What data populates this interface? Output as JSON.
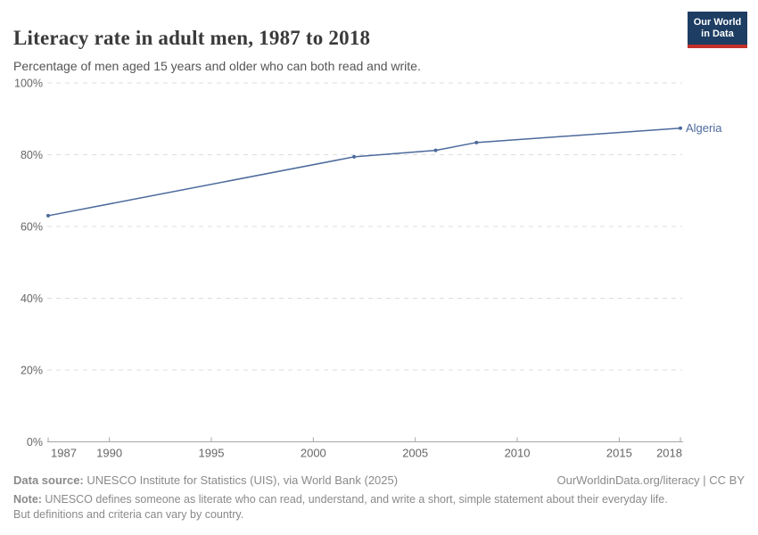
{
  "header": {
    "title": "Literacy rate in adult men, 1987 to 2018",
    "subtitle": "Percentage of men aged 15 years and older who can both read and write.",
    "logo": {
      "line1": "Our World",
      "line2": "in Data"
    }
  },
  "chart_data": {
    "type": "line",
    "title": "Literacy rate in adult men, 1987 to 2018",
    "xlabel": "",
    "ylabel": "",
    "xlim": [
      1987,
      2018
    ],
    "ylim": [
      0,
      100
    ],
    "x_ticks": [
      1987,
      1990,
      1995,
      2000,
      2005,
      2010,
      2015,
      2018
    ],
    "y_ticks": [
      0,
      20,
      40,
      60,
      80,
      100
    ],
    "y_tick_suffix": "%",
    "grid": "horizontal-dashed",
    "legend_position": "end-of-line-label",
    "series": [
      {
        "name": "Algeria",
        "color": "#4C6A9C",
        "points": [
          {
            "x": 1987,
            "y": 63.0
          },
          {
            "x": 2002,
            "y": 79.4
          },
          {
            "x": 2006,
            "y": 81.2
          },
          {
            "x": 2008,
            "y": 83.4
          },
          {
            "x": 2018,
            "y": 87.4
          }
        ]
      }
    ]
  },
  "footer": {
    "data_source_label": "Data source:",
    "data_source_text": " UNESCO Institute for Statistics (UIS), via World Bank (2025)",
    "link_text": "OurWorldinData.org/literacy | CC BY",
    "note_label": "Note:",
    "note_text": " UNESCO defines someone as literate who can read, understand, and write a short, simple statement about their everyday life. But definitions and criteria can vary by country."
  },
  "colors": {
    "line": "#4C6A9C",
    "grid": "#dddddd",
    "axis": "#a6a6a6",
    "tick_text": "#666666",
    "title_text": "#3a3a3a",
    "subtitle_text": "#555555",
    "footer_text": "#8a8a8a",
    "logo_bg": "#1d3d63",
    "logo_bar": "#c2302b"
  }
}
